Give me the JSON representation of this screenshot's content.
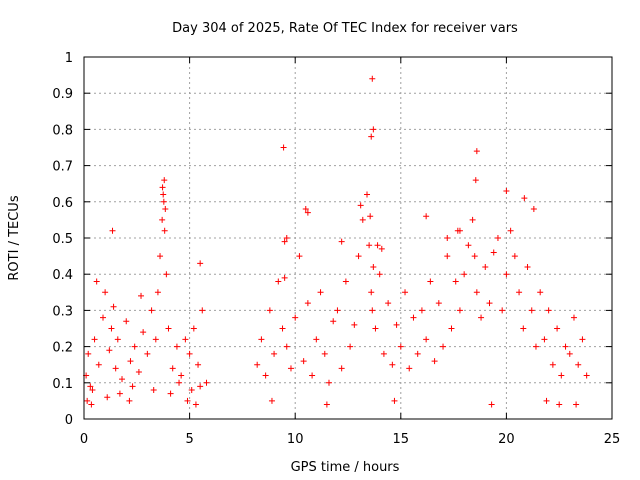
{
  "chart_data": {
    "type": "scatter",
    "title": "Day 304 of 2025, Rate Of TEC Index for receiver vars",
    "xlabel": "GPS time / hours",
    "ylabel": "ROTI / TECUs",
    "xlim": [
      0,
      25
    ],
    "ylim": [
      0,
      1
    ],
    "xticks": [
      0,
      5,
      10,
      15,
      20,
      25
    ],
    "yticks": [
      0,
      0.1,
      0.2,
      0.3,
      0.4,
      0.5,
      0.6,
      0.7,
      0.8,
      0.9,
      1
    ],
    "xtick_labels": [
      "0",
      "5",
      "10",
      "15",
      "20",
      "25"
    ],
    "ytick_labels": [
      "0",
      "0.1",
      "0.2",
      "0.3",
      "0.4",
      "0.5",
      "0.6",
      "0.7",
      "0.8",
      "0.9",
      "1"
    ],
    "grid": true,
    "marker": "+",
    "color": "#ff0000",
    "series": [
      {
        "x": [
          0.1,
          0.2,
          0.3,
          0.5,
          0.7,
          0.9,
          1.0,
          1.2,
          1.3,
          1.4,
          1.5,
          1.6,
          1.8,
          2.0,
          2.2,
          2.4,
          2.6,
          2.8,
          3.0,
          3.2,
          3.4,
          3.5,
          3.6,
          3.7,
          3.75,
          3.8,
          3.85,
          3.9,
          4.0,
          4.2,
          4.4,
          4.6,
          4.8,
          5.0,
          5.2,
          5.4,
          5.6,
          5.8,
          0.4,
          1.1,
          1.7,
          2.3,
          3.3,
          4.1,
          4.5,
          5.1,
          5.5,
          3.72,
          3.78,
          3.82,
          1.35,
          5.5,
          0.6,
          2.7,
          8.2,
          8.4,
          8.6,
          8.8,
          9.0,
          9.2,
          9.4,
          9.5,
          9.6,
          9.8,
          10.0,
          10.2,
          10.4,
          10.6,
          10.8,
          11.0,
          11.2,
          11.4,
          11.6,
          11.8,
          12.0,
          12.2,
          12.4,
          12.6,
          12.8,
          13.0,
          13.2,
          13.4,
          13.5,
          13.6,
          13.65,
          13.7,
          13.8,
          14.0,
          14.2,
          14.4,
          14.6,
          14.8,
          15.0,
          15.2,
          15.4,
          15.6,
          15.8,
          16.0,
          16.2,
          16.4,
          16.6,
          16.8,
          17.0,
          17.2,
          17.4,
          17.6,
          17.8,
          18.0,
          18.2,
          18.4,
          18.5,
          18.6,
          18.8,
          19.0,
          19.2,
          19.4,
          19.6,
          19.8,
          20.0,
          20.2,
          20.4,
          20.6,
          20.8,
          21.0,
          21.2,
          21.4,
          21.6,
          21.8,
          22.0,
          22.2,
          22.4,
          22.6,
          22.8,
          23.0,
          23.2,
          23.4,
          23.6,
          23.8,
          9.45,
          13.65,
          13.7,
          18.6,
          18.55,
          20.0,
          20.85,
          21.3,
          13.1,
          13.6,
          13.55,
          16.2,
          17.7,
          17.8,
          17.2,
          10.5,
          10.6,
          9.6,
          9.5,
          12.2,
          13.9,
          14.1,
          0.15,
          0.35,
          2.15,
          4.9,
          5.3,
          8.9,
          11.5,
          14.7,
          19.3,
          21.9,
          22.5,
          23.3
        ],
        "y": [
          0.12,
          0.18,
          0.09,
          0.22,
          0.15,
          0.28,
          0.35,
          0.19,
          0.25,
          0.31,
          0.14,
          0.22,
          0.11,
          0.27,
          0.16,
          0.2,
          0.13,
          0.24,
          0.18,
          0.3,
          0.22,
          0.35,
          0.45,
          0.55,
          0.62,
          0.66,
          0.58,
          0.4,
          0.25,
          0.14,
          0.2,
          0.12,
          0.22,
          0.18,
          0.25,
          0.15,
          0.3,
          0.1,
          0.08,
          0.06,
          0.07,
          0.09,
          0.08,
          0.07,
          0.1,
          0.08,
          0.09,
          0.64,
          0.6,
          0.52,
          0.52,
          0.43,
          0.38,
          0.34,
          0.15,
          0.22,
          0.12,
          0.3,
          0.18,
          0.38,
          0.25,
          0.39,
          0.2,
          0.14,
          0.28,
          0.45,
          0.16,
          0.32,
          0.12,
          0.22,
          0.35,
          0.18,
          0.1,
          0.27,
          0.3,
          0.14,
          0.38,
          0.2,
          0.26,
          0.45,
          0.55,
          0.62,
          0.48,
          0.35,
          0.3,
          0.42,
          0.25,
          0.4,
          0.18,
          0.32,
          0.15,
          0.26,
          0.2,
          0.35,
          0.14,
          0.28,
          0.18,
          0.3,
          0.22,
          0.38,
          0.16,
          0.32,
          0.2,
          0.45,
          0.25,
          0.38,
          0.3,
          0.4,
          0.48,
          0.55,
          0.45,
          0.35,
          0.28,
          0.42,
          0.32,
          0.46,
          0.5,
          0.3,
          0.4,
          0.52,
          0.45,
          0.35,
          0.25,
          0.42,
          0.3,
          0.2,
          0.35,
          0.22,
          0.3,
          0.15,
          0.25,
          0.12,
          0.2,
          0.18,
          0.28,
          0.15,
          0.22,
          0.12,
          0.75,
          0.94,
          0.8,
          0.74,
          0.66,
          0.63,
          0.61,
          0.58,
          0.59,
          0.78,
          0.56,
          0.56,
          0.52,
          0.52,
          0.5,
          0.58,
          0.57,
          0.5,
          0.49,
          0.49,
          0.48,
          0.47,
          0.05,
          0.04,
          0.05,
          0.05,
          0.04,
          0.05,
          0.04,
          0.05,
          0.04,
          0.05,
          0.04,
          0.04
        ]
      }
    ]
  }
}
